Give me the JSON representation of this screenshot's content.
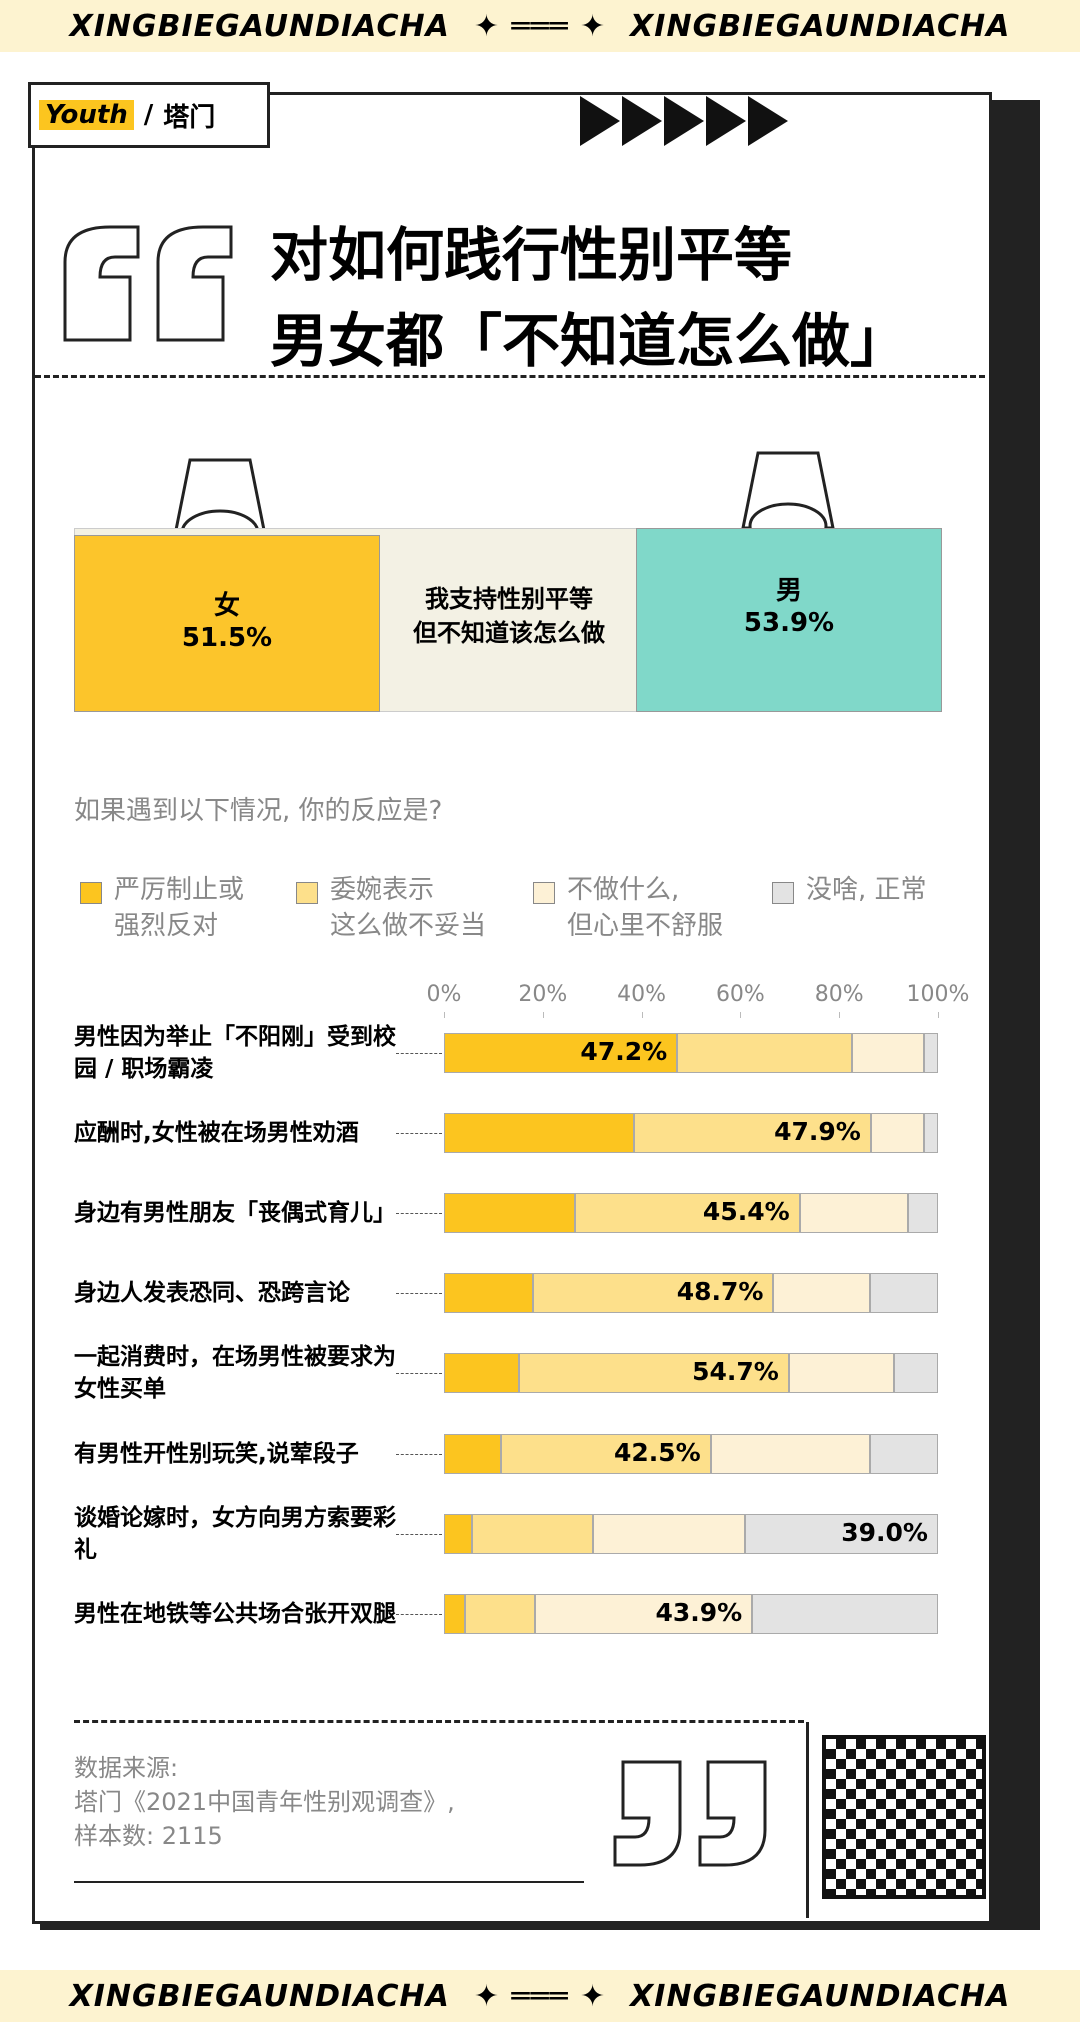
{
  "banner": "XINGBIEGAUNDIACHA",
  "logo": {
    "left": "Youth",
    "right": "塔门"
  },
  "title": [
    "对如何践行性别平等",
    "男女都「不知道怎么做」"
  ],
  "chart_data": [
    {
      "type": "pair",
      "annotation": "我支持性别平等\n但不知道该怎么做",
      "categories": [
        "女",
        "男"
      ],
      "values": [
        51.5,
        53.9
      ],
      "value_labels": [
        "51.5%",
        "53.9%"
      ],
      "colors": [
        "#fcc52b",
        "#80d8c9"
      ]
    },
    {
      "type": "bar",
      "orientation": "horizontal",
      "stacked": true,
      "subtitle": "如果遇到以下情况, 你的反应是?",
      "categories": [
        "男性因为举止「不阳刚」受到校园 / 职场霸凌",
        "应酬时,女性被在场男性劝酒",
        "身边有男性朋友「丧偶式育儿」",
        "身边人发表恐同、恐跨言论",
        "一起消费时，在场男性被要求为女性买单",
        "有男性开性别玩笑,说荤段子",
        "谈婚论嫁时，女方向男方索要彩礼",
        "男性在地铁等公共场合张开双腿"
      ],
      "series": [
        {
          "name": "严厉制止或\n强烈反对",
          "color": "#fcc51f",
          "values": [
            47.2,
            38.5,
            26.6,
            18.0,
            15.1,
            11.5,
            5.7,
            4.2
          ],
          "value_labels": [
            "47.2%",
            null,
            null,
            null,
            null,
            null,
            null,
            null
          ]
        },
        {
          "name": "委婉表示\n这么做不妥当",
          "color": "#fde08b",
          "values": [
            35.4,
            47.9,
            45.4,
            48.7,
            54.7,
            42.5,
            24.5,
            14.3
          ],
          "value_labels": [
            null,
            "47.9%",
            "45.4%",
            "48.7%",
            "54.7%",
            "42.5%",
            null,
            null
          ]
        },
        {
          "name": "不做什么,\n但心里不舒服",
          "color": "#fdf1d6",
          "values": [
            14.6,
            10.7,
            22.0,
            19.5,
            21.3,
            32.2,
            30.8,
            43.9
          ],
          "value_labels": [
            null,
            null,
            null,
            null,
            null,
            null,
            null,
            "43.9%"
          ]
        },
        {
          "name": "没啥, 正常",
          "color": "#e3e3e3",
          "values": [
            2.8,
            2.9,
            6.0,
            13.8,
            8.9,
            13.8,
            39.0,
            37.6
          ],
          "value_labels": [
            null,
            null,
            null,
            null,
            null,
            null,
            "39.0%",
            null
          ]
        }
      ],
      "xlim": [
        0,
        100
      ],
      "xticks": [
        {
          "value": 0,
          "label": "0%"
        },
        {
          "value": 20,
          "label": "20%"
        },
        {
          "value": 40,
          "label": "40%"
        },
        {
          "value": 60,
          "label": "60%"
        },
        {
          "value": 80,
          "label": "80%"
        },
        {
          "value": 100,
          "label": "100%"
        }
      ]
    }
  ],
  "source": [
    "数据来源:",
    "塔门《2021中国青年性别观调查》,",
    "样本数: 2115"
  ]
}
